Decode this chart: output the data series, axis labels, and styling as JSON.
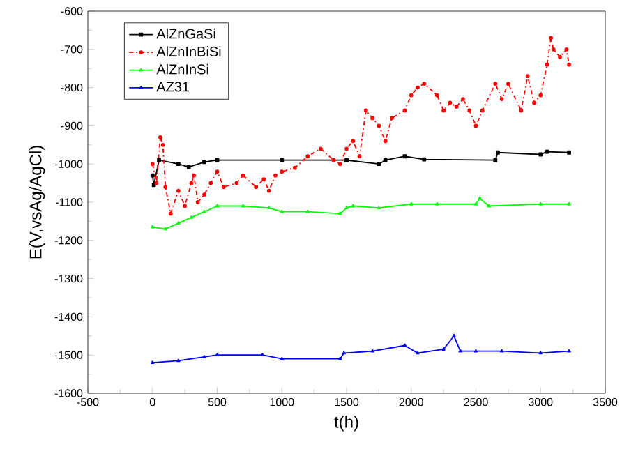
{
  "chart_data": {
    "type": "line",
    "xlabel": "t(h)",
    "ylabel": "E(V,vsAg/AgCl)",
    "xlim": [
      -500,
      3500
    ],
    "xticks": [
      -500,
      0,
      500,
      1000,
      1500,
      2000,
      2500,
      3000,
      3500
    ],
    "ylim": [
      -1600,
      -600
    ],
    "yticks": [
      -1600,
      -1500,
      -1400,
      -1300,
      -1200,
      -1100,
      -1000,
      -900,
      -800,
      -700,
      -600
    ],
    "legend": "top left",
    "grid": false,
    "series": [
      {
        "name": "AlZnGaSi",
        "color": "#000000",
        "marker": "square",
        "line_style": "solid",
        "x": [
          0,
          10,
          50,
          200,
          280,
          400,
          500,
          1000,
          1500,
          1750,
          1800,
          1950,
          2100,
          2650,
          2670,
          3000,
          3050,
          3220
        ],
        "values": [
          -1030,
          -1055,
          -990,
          -1000,
          -1008,
          -995,
          -990,
          -990,
          -990,
          -1000,
          -990,
          -980,
          -988,
          -990,
          -970,
          -975,
          -968,
          -970
        ]
      },
      {
        "name": "AlZnInBiSi",
        "color": "#ff0000",
        "marker": "circle",
        "line_style": "dashdot",
        "x": [
          0,
          30,
          60,
          80,
          100,
          140,
          200,
          250,
          300,
          320,
          350,
          400,
          450,
          500,
          550,
          650,
          700,
          800,
          860,
          900,
          950,
          1000,
          1100,
          1200,
          1300,
          1400,
          1450,
          1500,
          1550,
          1600,
          1650,
          1700,
          1750,
          1800,
          1850,
          1950,
          2000,
          2050,
          2100,
          2200,
          2250,
          2300,
          2350,
          2400,
          2450,
          2500,
          2550,
          2650,
          2700,
          2750,
          2850,
          2900,
          2950,
          3000,
          3050,
          3080,
          3100,
          3150,
          3200,
          3220
        ],
        "values": [
          -1000,
          -1050,
          -930,
          -950,
          -1060,
          -1130,
          -1070,
          -1110,
          -1050,
          -1030,
          -1100,
          -1080,
          -1050,
          -1020,
          -1060,
          -1050,
          -1030,
          -1060,
          -1040,
          -1070,
          -1030,
          -1020,
          -1010,
          -980,
          -960,
          -990,
          -1000,
          -960,
          -940,
          -980,
          -860,
          -880,
          -900,
          -940,
          -880,
          -860,
          -820,
          -800,
          -790,
          -820,
          -860,
          -840,
          -850,
          -830,
          -860,
          -900,
          -860,
          -790,
          -830,
          -790,
          -860,
          -770,
          -840,
          -820,
          -740,
          -670,
          -700,
          -720,
          -700,
          -740
        ]
      },
      {
        "name": "AlZnInSi",
        "color": "#00ff00",
        "marker": "triangle",
        "line_style": "solid",
        "x": [
          0,
          100,
          200,
          300,
          400,
          500,
          700,
          900,
          1000,
          1200,
          1450,
          1500,
          1550,
          1750,
          2000,
          2200,
          2500,
          2530,
          2600,
          3000,
          3220
        ],
        "values": [
          -1165,
          -1170,
          -1155,
          -1140,
          -1125,
          -1110,
          -1110,
          -1115,
          -1125,
          -1125,
          -1130,
          -1115,
          -1110,
          -1115,
          -1105,
          -1105,
          -1105,
          -1090,
          -1110,
          -1105,
          -1105
        ]
      },
      {
        "name": "AZ31",
        "color": "#0000ff",
        "marker": "triangle",
        "line_style": "solid",
        "x": [
          0,
          200,
          400,
          500,
          850,
          1000,
          1450,
          1480,
          1700,
          1950,
          2050,
          2250,
          2330,
          2380,
          2500,
          2700,
          3000,
          3220
        ],
        "values": [
          -1520,
          -1515,
          -1505,
          -1500,
          -1500,
          -1510,
          -1510,
          -1495,
          -1490,
          -1475,
          -1495,
          -1485,
          -1450,
          -1490,
          -1490,
          -1490,
          -1495,
          -1490
        ]
      }
    ]
  }
}
